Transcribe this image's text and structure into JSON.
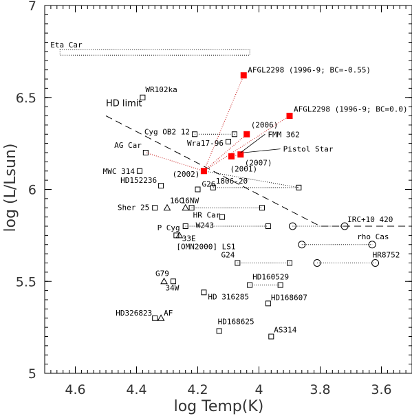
{
  "chart_data": {
    "type": "scatter",
    "xlabel": "log Temp(K)",
    "ylabel": "log (L/Lsun)",
    "xlim": [
      4.7,
      3.5
    ],
    "ylim": [
      5.0,
      7.0
    ],
    "x_reversed": true,
    "xticks": [
      {
        "value": 4.6,
        "label": "4.6"
      },
      {
        "value": 4.4,
        "label": "4.4"
      },
      {
        "value": 4.2,
        "label": "4.2"
      },
      {
        "value": 4.0,
        "label": "4"
      },
      {
        "value": 3.8,
        "label": "3.8"
      },
      {
        "value": 3.6,
        "label": "3.6"
      }
    ],
    "yticks": [
      {
        "value": 5.0,
        "label": "5"
      },
      {
        "value": 5.5,
        "label": "5.5"
      },
      {
        "value": 6.0,
        "label": "6"
      },
      {
        "value": 6.5,
        "label": "6.5"
      },
      {
        "value": 7.0,
        "label": "7"
      }
    ],
    "marker_colors": {
      "open": "#000000",
      "highlight": "#ff0000",
      "dotted_red": "#cc3333"
    },
    "hd_limit": {
      "label": "HD limit",
      "points": [
        [
          4.5,
          6.4
        ],
        [
          3.8,
          5.8
        ],
        [
          3.5,
          5.8
        ]
      ]
    },
    "eta_car_box": {
      "label": "Eta Car",
      "x": [
        4.65,
        4.03
      ],
      "y": [
        6.73,
        6.76
      ]
    },
    "stars": [
      {
        "name": "WR102ka",
        "marker": "square",
        "x": 4.38,
        "y": 6.5
      },
      {
        "name": "Cyg OB2 12",
        "marker": "square",
        "x": 4.21,
        "y": 6.3,
        "x2": 4.08
      },
      {
        "name": "Wra17-96",
        "marker": "square",
        "x": 4.1,
        "y": 6.26
      },
      {
        "name": "AG Car",
        "marker": "square",
        "x": 4.37,
        "y": 6.2
      },
      {
        "name": "MWC 314",
        "marker": "square",
        "x": 4.39,
        "y": 6.1
      },
      {
        "name": "HD152236",
        "marker": "square",
        "x": 4.32,
        "y": 6.02
      },
      {
        "name": "G26",
        "marker": "square",
        "x": 4.2,
        "y": 6.0
      },
      {
        "name": "1806-20",
        "marker": "square",
        "x": 4.15,
        "y": 6.01,
        "x2": 3.87
      },
      {
        "name": "Sher 25",
        "marker": "square",
        "x": 4.34,
        "y": 5.9
      },
      {
        "name": "16C",
        "marker": "triangle",
        "x": 4.3,
        "y": 5.9
      },
      {
        "name": "16NW",
        "marker": "triangle",
        "x": 4.24,
        "y": 5.9
      },
      {
        "name": "HR Car",
        "marker": "square",
        "x": 4.22,
        "y": 5.9,
        "x2": 3.99
      },
      {
        "name": "W243",
        "marker": "square",
        "x": 4.12,
        "y": 5.85
      },
      {
        "name": "P Cyg",
        "marker": "square",
        "x": 4.24,
        "y": 5.8,
        "x2": 3.97
      },
      {
        "name": "33E",
        "marker": "triangle",
        "x": 4.26,
        "y": 5.75
      },
      {
        "name": "[OMN2000] LS1",
        "marker": "square",
        "x": 4.27,
        "y": 5.75
      },
      {
        "name": "G24",
        "marker": "square",
        "x": 4.07,
        "y": 5.6,
        "x2": 3.9
      },
      {
        "name": "G79",
        "marker": "square",
        "x": 4.28,
        "y": 5.5
      },
      {
        "name": "34W",
        "marker": "triangle",
        "x": 4.31,
        "y": 5.5
      },
      {
        "name": "HD 316285",
        "marker": "square",
        "x": 4.18,
        "y": 5.44
      },
      {
        "name": "HD160529",
        "marker": "square",
        "x": 4.03,
        "y": 5.48,
        "x2": 3.93
      },
      {
        "name": "HD168607",
        "marker": "square",
        "x": 3.97,
        "y": 5.38
      },
      {
        "name": "HD326823",
        "marker": "square",
        "x": 4.34,
        "y": 5.3
      },
      {
        "name": "AF",
        "marker": "triangle",
        "x": 4.32,
        "y": 5.3
      },
      {
        "name": "HD168625",
        "marker": "square",
        "x": 4.13,
        "y": 5.23
      },
      {
        "name": "AS314",
        "marker": "square",
        "x": 3.96,
        "y": 5.2
      },
      {
        "name": "IRC+10 420",
        "marker": "circle",
        "x": 3.89,
        "y": 5.8,
        "x2": 3.72
      },
      {
        "name": "rho Cas",
        "marker": "circle",
        "x": 3.86,
        "y": 5.7,
        "x2": 3.63
      },
      {
        "name": "HR8752",
        "marker": "circle",
        "x": 3.81,
        "y": 5.6,
        "x2": 3.62
      }
    ],
    "afgl2298": {
      "points": [
        {
          "x": 4.05,
          "y": 6.62,
          "label": "AFGL2298 (1996-9; BC=-0.55)"
        },
        {
          "x": 3.9,
          "y": 6.4,
          "label": "AFGL2298 (1996-9; BC=0.0)"
        },
        {
          "x": 4.04,
          "y": 6.3,
          "label": "(2006)"
        },
        {
          "x": 4.06,
          "y": 6.19,
          "label": "(2007)"
        },
        {
          "x": 4.09,
          "y": 6.18,
          "label": "(2001)"
        },
        {
          "x": 4.18,
          "y": 6.1,
          "label": "(2002)"
        }
      ]
    },
    "annotations": [
      {
        "text": "FMM 362",
        "x": 4.06,
        "y": 6.2,
        "tx": 3.98,
        "ty": 6.3
      },
      {
        "text": "Pistol Star",
        "x": 4.05,
        "y": 6.2,
        "tx": 3.93,
        "ty": 6.22
      }
    ]
  }
}
